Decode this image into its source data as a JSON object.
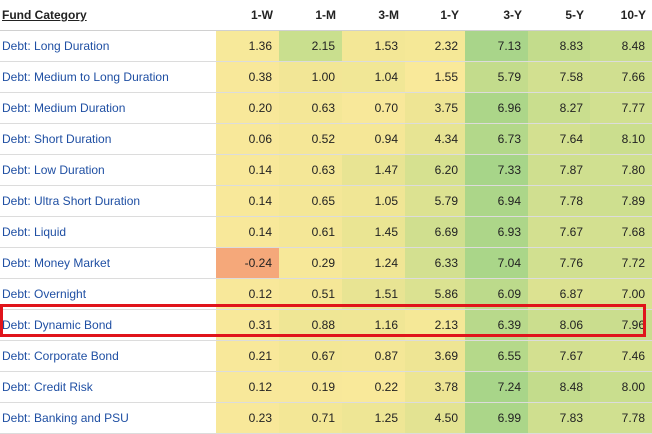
{
  "table": {
    "columns": [
      "Fund Category",
      "1-W",
      "1-M",
      "3-M",
      "1-Y",
      "3-Y",
      "5-Y",
      "10-Y"
    ],
    "rows": [
      {
        "name": "Debt: Long Duration",
        "values": [
          "1.36",
          "2.15",
          "1.53",
          "2.32",
          "7.13",
          "8.83",
          "8.48"
        ]
      },
      {
        "name": "Debt: Medium to Long Duration",
        "values": [
          "0.38",
          "1.00",
          "1.04",
          "1.55",
          "5.79",
          "7.58",
          "7.66"
        ]
      },
      {
        "name": "Debt: Medium Duration",
        "values": [
          "0.20",
          "0.63",
          "0.70",
          "3.75",
          "6.96",
          "8.27",
          "7.77"
        ]
      },
      {
        "name": "Debt: Short Duration",
        "values": [
          "0.06",
          "0.52",
          "0.94",
          "4.34",
          "6.73",
          "7.64",
          "8.10"
        ]
      },
      {
        "name": "Debt: Low Duration",
        "values": [
          "0.14",
          "0.63",
          "1.47",
          "6.20",
          "7.33",
          "7.87",
          "7.80"
        ]
      },
      {
        "name": "Debt: Ultra Short Duration",
        "values": [
          "0.14",
          "0.65",
          "1.05",
          "5.79",
          "6.94",
          "7.78",
          "7.89"
        ]
      },
      {
        "name": "Debt: Liquid",
        "values": [
          "0.14",
          "0.61",
          "1.45",
          "6.69",
          "6.93",
          "7.67",
          "7.68"
        ]
      },
      {
        "name": "Debt: Money Market",
        "values": [
          "-0.24",
          "0.29",
          "1.24",
          "6.33",
          "7.04",
          "7.76",
          "7.72"
        ]
      },
      {
        "name": "Debt: Overnight",
        "values": [
          "0.12",
          "0.51",
          "1.51",
          "5.86",
          "6.09",
          "6.87",
          "7.00"
        ]
      },
      {
        "name": "Debt: Dynamic Bond",
        "values": [
          "0.31",
          "0.88",
          "1.16",
          "2.13",
          "6.39",
          "8.06",
          "7.96"
        ]
      },
      {
        "name": "Debt: Corporate Bond",
        "values": [
          "0.21",
          "0.67",
          "0.87",
          "3.69",
          "6.55",
          "7.67",
          "7.46"
        ]
      },
      {
        "name": "Debt: Credit Risk",
        "values": [
          "0.12",
          "0.19",
          "0.22",
          "3.78",
          "7.24",
          "8.48",
          "8.00"
        ]
      },
      {
        "name": "Debt: Banking and PSU",
        "values": [
          "0.23",
          "0.71",
          "1.25",
          "4.50",
          "6.99",
          "7.83",
          "7.78"
        ]
      }
    ],
    "cell_colors": [
      [
        "#f7e99a",
        "#c9df8e",
        "#f3e796",
        "#f5e897",
        "#a9d58a",
        "#c3dc8c",
        "#c9de8e"
      ],
      [
        "#f8e89a",
        "#f2e696",
        "#f1e796",
        "#f9e99a",
        "#c3dc8c",
        "#d2e090",
        "#d0df90"
      ],
      [
        "#f8e89a",
        "#f4e797",
        "#f8e89a",
        "#eee594",
        "#acd689",
        "#c9de8e",
        "#d1e090"
      ],
      [
        "#f8e89a",
        "#f5e797",
        "#f5e797",
        "#e7e493",
        "#b3d88a",
        "#d3e090",
        "#cbde8e"
      ],
      [
        "#f8e89a",
        "#f4e797",
        "#e8e493",
        "#d6e190",
        "#a7d589",
        "#cfdf8f",
        "#d0e090"
      ],
      [
        "#f8e89a",
        "#f4e797",
        "#f0e695",
        "#dce291",
        "#acd689",
        "#d0df90",
        "#cedf8f"
      ],
      [
        "#f8e89a",
        "#f4e797",
        "#eae593",
        "#d0df8f",
        "#add689",
        "#d3e090",
        "#d3e090"
      ],
      [
        "#f5a87a",
        "#f7e899",
        "#f0e695",
        "#d3e090",
        "#aad689",
        "#d1e090",
        "#d2e090"
      ],
      [
        "#f8e89a",
        "#f5e797",
        "#e8e493",
        "#dbe291",
        "#bcda8b",
        "#dce291",
        "#d9e291"
      ],
      [
        "#f8e89a",
        "#efe695",
        "#f0e695",
        "#f5e897",
        "#b8d98b",
        "#cbde8e",
        "#cadd8e"
      ],
      [
        "#f8e89a",
        "#f3e796",
        "#f4e797",
        "#eee594",
        "#b5d98a",
        "#d3e090",
        "#d6e190"
      ],
      [
        "#f8e89a",
        "#f8e89a",
        "#f9e99a",
        "#ede594",
        "#a8d589",
        "#c3dc8c",
        "#c9de8e"
      ],
      [
        "#f8e89a",
        "#f3e796",
        "#eee695",
        "#e3e392",
        "#abd689",
        "#cfdf8f",
        "#d0e090"
      ]
    ],
    "name_cell_color": "#ffffff",
    "highlight_row_index": 9,
    "highlight_color": "#e0141b"
  }
}
